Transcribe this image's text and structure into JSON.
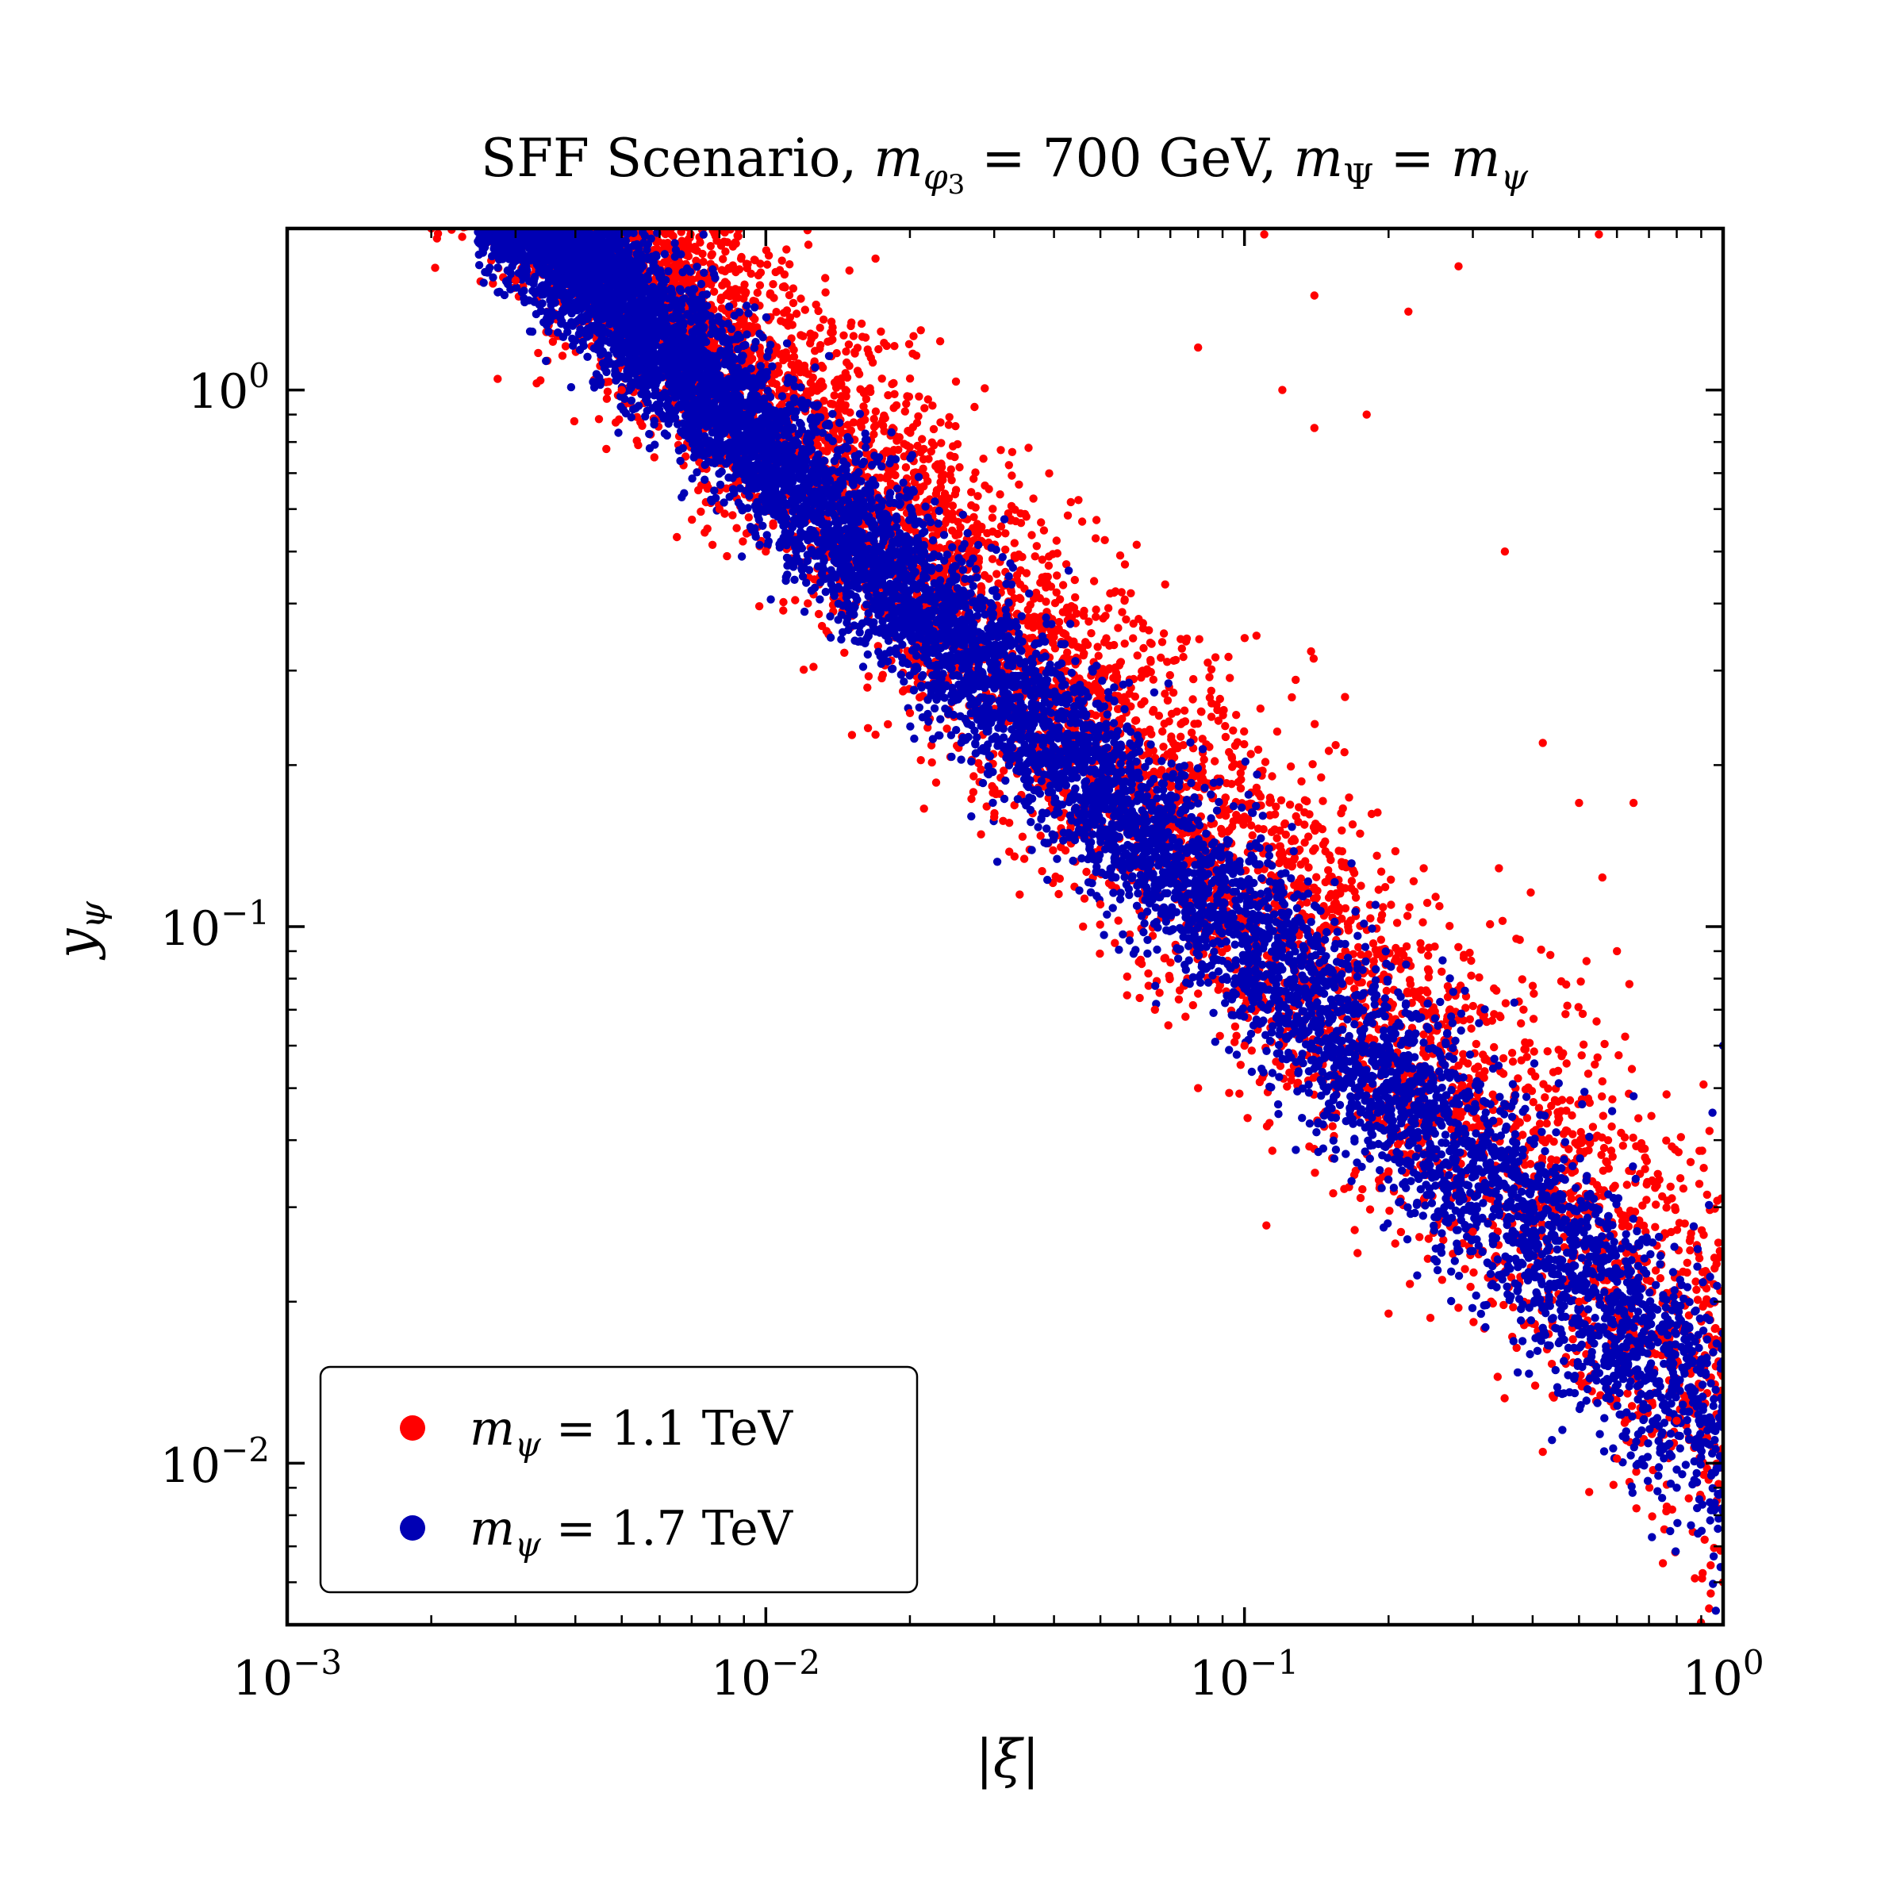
{
  "chart_data": {
    "type": "scatter",
    "title": "SFF Scenario, m_φ₃ = 700 GeV, m_Ψ = m_ψ",
    "xlabel": "|ξ|",
    "ylabel": "y_ψ",
    "x_scale": "log",
    "y_scale": "log",
    "xlim": [
      0.001,
      1
    ],
    "ylim": [
      0.005,
      2
    ],
    "x_ticks": [
      "10⁻³",
      "10⁻²",
      "10⁻¹",
      "10⁰"
    ],
    "y_ticks": [
      "10⁻²",
      "10⁻¹",
      "10⁰"
    ],
    "legend_position": "lower-left",
    "grid": false,
    "series": [
      {
        "name": "m_ψ = 1.1 TeV",
        "color": "#ff0000",
        "band": {
          "x_range": [
            0.002,
            1.0
          ],
          "y_of_x": "approximately y ≈ 0.0148 · x^(-0.91)",
          "log10_scatter": 0.16
        },
        "points": [
          [
            0.002,
            2.0
          ],
          [
            0.003,
            1.6
          ],
          [
            0.005,
            1.0
          ],
          [
            0.008,
            0.6
          ],
          [
            0.01,
            0.5
          ],
          [
            0.02,
            0.25
          ],
          [
            0.03,
            0.16
          ],
          [
            0.05,
            0.11
          ],
          [
            0.08,
            0.075
          ],
          [
            0.1,
            0.06
          ],
          [
            0.2,
            0.035
          ],
          [
            0.3,
            0.027
          ],
          [
            0.5,
            0.02
          ],
          [
            0.8,
            0.012
          ],
          [
            0.11,
            1.95
          ],
          [
            0.55,
            1.95
          ],
          [
            0.28,
            1.7
          ],
          [
            0.14,
            1.5
          ],
          [
            0.22,
            1.4
          ],
          [
            0.08,
            1.2
          ],
          [
            0.12,
            1.0
          ],
          [
            0.18,
            0.9
          ],
          [
            0.14,
            0.85
          ],
          [
            0.35,
            0.5
          ],
          [
            0.42,
            0.22
          ],
          [
            0.5,
            0.17
          ],
          [
            0.65,
            0.17
          ],
          [
            0.6,
            0.09
          ],
          [
            0.42,
            0.0105
          ],
          [
            0.6,
            0.0102
          ],
          [
            1.0,
            0.006
          ],
          [
            0.065,
            0.07
          ],
          [
            0.08,
            0.05
          ],
          [
            0.2,
            0.019
          ]
        ]
      },
      {
        "name": "m_ψ = 1.7 TeV",
        "color": "#0000b4",
        "band": {
          "x_range": [
            0.0025,
            1.0
          ],
          "y_of_x": "approximately y ≈ 0.0118 · x^(-0.91)",
          "log10_scatter": 0.11
        },
        "points": [
          [
            0.003,
            1.8
          ],
          [
            0.005,
            1.2
          ],
          [
            0.008,
            0.75
          ],
          [
            0.01,
            0.6
          ],
          [
            0.015,
            0.45
          ],
          [
            0.02,
            0.35
          ],
          [
            0.03,
            0.25
          ],
          [
            0.05,
            0.15
          ],
          [
            0.08,
            0.1
          ],
          [
            0.1,
            0.08
          ],
          [
            0.15,
            0.06
          ],
          [
            0.2,
            0.045
          ],
          [
            0.3,
            0.03
          ],
          [
            0.5,
            0.022
          ],
          [
            0.7,
            0.017
          ],
          [
            0.9,
            0.012
          ],
          [
            1.0,
            0.06
          ],
          [
            0.95,
            0.045
          ],
          [
            0.8,
            0.009
          ],
          [
            1.0,
            0.0155
          ]
        ]
      }
    ]
  },
  "legend": {
    "items": [
      {
        "label": "m_ψ = 1.1 TeV",
        "color": "#ff0000"
      },
      {
        "label": "m_ψ = 1.7 TeV",
        "color": "#0000b4"
      }
    ]
  }
}
